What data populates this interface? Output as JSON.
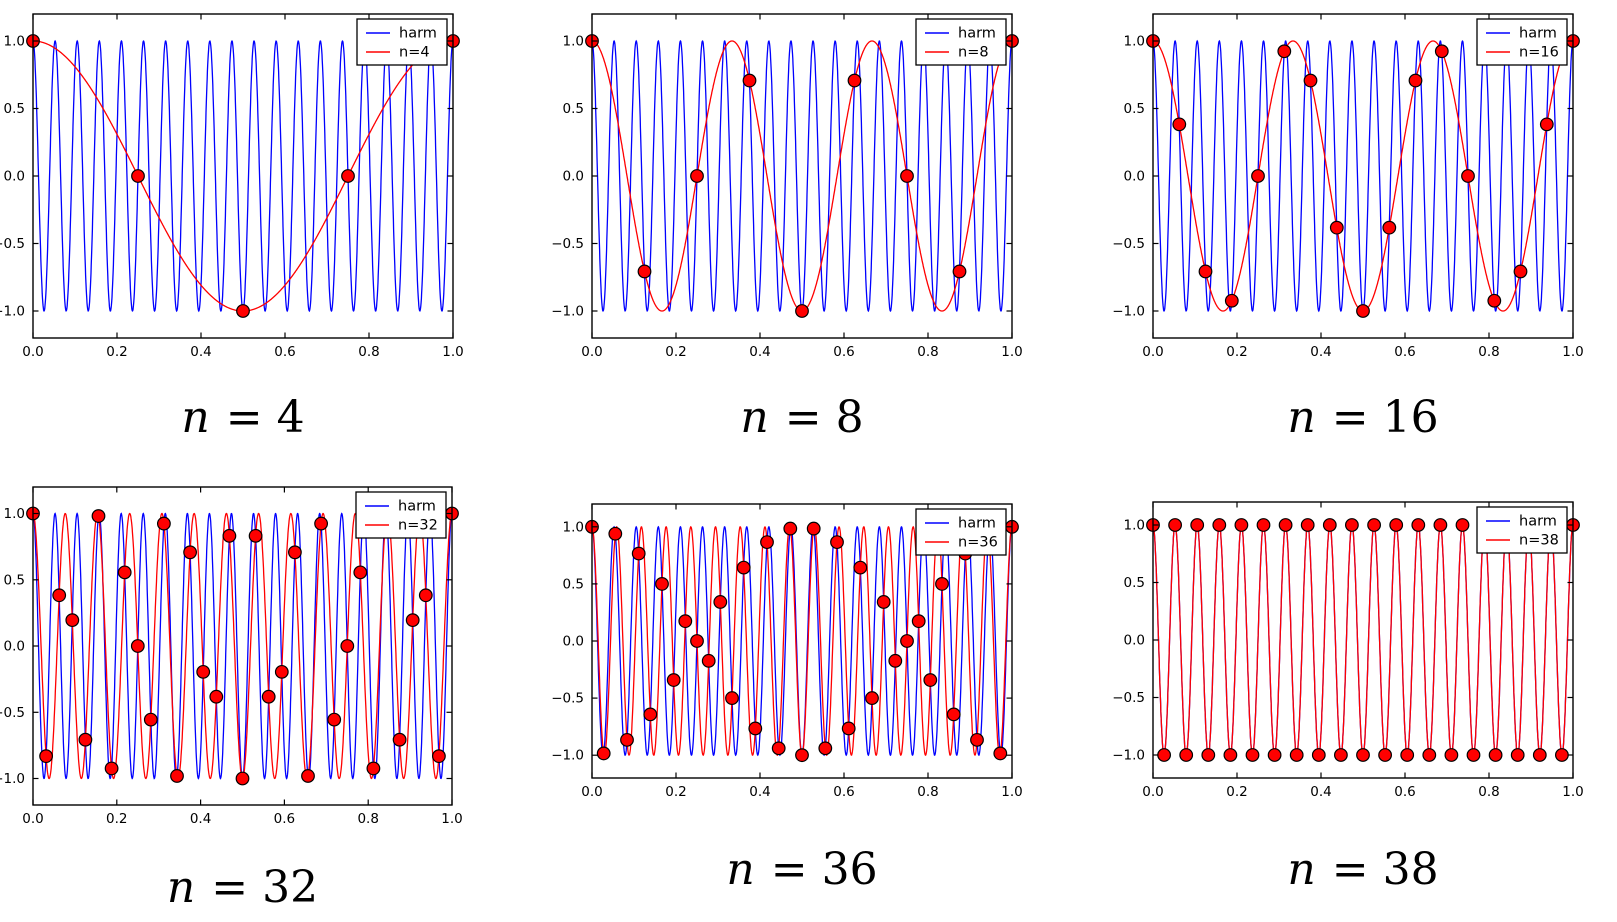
{
  "colors": {
    "harm": "#0000ff",
    "alias": "#ff0000",
    "marker_face": "#ff0000",
    "marker_edge": "#000000",
    "frame": "#000000",
    "background": "#ffffff"
  },
  "chart_data": [
    {
      "type": "line",
      "caption": "n = 4",
      "legend": [
        "harm",
        "n=4"
      ],
      "legend_position": "upper right",
      "n": 4,
      "harmonic_frequency": 19,
      "alias_frequency": 1,
      "xlim": [
        0,
        1
      ],
      "ylim": [
        -1.2,
        1.2
      ],
      "x_ticks": [
        0.0,
        0.2,
        0.4,
        0.6,
        0.8,
        1.0
      ],
      "y_ticks": [
        -1.0,
        -0.5,
        0.0,
        0.5,
        1.0
      ],
      "xlabel": "",
      "ylabel": "",
      "grid": false,
      "samples": {
        "x": [
          0,
          0.25,
          0.5,
          0.75,
          1
        ],
        "y": [
          1,
          0,
          -1,
          0,
          1
        ]
      }
    },
    {
      "type": "line",
      "caption": "n = 8",
      "legend": [
        "harm",
        "n=8"
      ],
      "legend_position": "upper right",
      "n": 8,
      "harmonic_frequency": 19,
      "alias_frequency": 3,
      "xlim": [
        0,
        1
      ],
      "ylim": [
        -1.2,
        1.2
      ],
      "x_ticks": [
        0.0,
        0.2,
        0.4,
        0.6,
        0.8,
        1.0
      ],
      "y_ticks": [
        -1.0,
        -0.5,
        0.0,
        0.5,
        1.0
      ],
      "xlabel": "",
      "ylabel": "",
      "grid": false,
      "samples": {
        "x": [
          0,
          0.125,
          0.25,
          0.375,
          0.5,
          0.625,
          0.75,
          0.875,
          1
        ],
        "y": [
          1,
          -0.7071,
          0,
          0.7071,
          -1,
          0.7071,
          0,
          -0.7071,
          1
        ]
      }
    },
    {
      "type": "line",
      "caption": "n = 16",
      "legend": [
        "harm",
        "n=16"
      ],
      "legend_position": "upper right",
      "n": 16,
      "harmonic_frequency": 19,
      "alias_frequency": 3,
      "xlim": [
        0,
        1
      ],
      "ylim": [
        -1.2,
        1.2
      ],
      "x_ticks": [
        0.0,
        0.2,
        0.4,
        0.6,
        0.8,
        1.0
      ],
      "y_ticks": [
        -1.0,
        -0.5,
        0.0,
        0.5,
        1.0
      ],
      "xlabel": "",
      "ylabel": "",
      "grid": false,
      "samples": {
        "x": [
          0,
          0.0625,
          0.125,
          0.1875,
          0.25,
          0.3125,
          0.375,
          0.4375,
          0.5,
          0.5625,
          0.625,
          0.6875,
          0.75,
          0.8125,
          0.875,
          0.9375,
          1
        ],
        "y": [
          1,
          0.3827,
          -0.7071,
          -0.9239,
          0,
          0.9239,
          0.7071,
          -0.3827,
          -1,
          -0.3827,
          0.7071,
          0.9239,
          0,
          -0.9239,
          -0.7071,
          0.3827,
          1
        ]
      }
    },
    {
      "type": "line",
      "caption": "n = 32",
      "legend": [
        "harm",
        "n=32"
      ],
      "legend_position": "upper right",
      "n": 32,
      "harmonic_frequency": 19,
      "alias_frequency": 13,
      "xlim": [
        0,
        1
      ],
      "ylim": [
        -1.2,
        1.2
      ],
      "x_ticks": [
        0.0,
        0.2,
        0.4,
        0.6,
        0.8,
        1.0
      ],
      "y_ticks": [
        -1.0,
        -0.5,
        0.0,
        0.5,
        1.0
      ],
      "xlabel": "",
      "ylabel": "",
      "grid": false,
      "samples": {
        "x": [
          0,
          0.03125,
          0.0625,
          0.09375,
          0.125,
          0.15625,
          0.1875,
          0.21875,
          0.25,
          0.28125,
          0.3125,
          0.34375,
          0.375,
          0.40625,
          0.4375,
          0.46875,
          0.5,
          0.53125,
          0.5625,
          0.59375,
          0.625,
          0.65625,
          0.6875,
          0.71875,
          0.75,
          0.78125,
          0.8125,
          0.84375,
          0.875,
          0.90625,
          0.9375,
          0.96875,
          1
        ],
        "y": [
          1,
          -0.8315,
          0.3827,
          0.1951,
          -0.7071,
          0.9808,
          -0.9239,
          0.5556,
          0,
          -0.5556,
          0.9239,
          -0.9808,
          0.7071,
          -0.1951,
          -0.3827,
          0.8315,
          -1,
          0.8315,
          -0.3827,
          -0.1951,
          0.7071,
          -0.9808,
          0.9239,
          -0.5556,
          0,
          0.5556,
          -0.9239,
          0.9808,
          -0.7071,
          0.1951,
          0.3827,
          -0.8315,
          1
        ]
      }
    },
    {
      "type": "line",
      "caption": "n = 36",
      "legend": [
        "harm",
        "n=36"
      ],
      "legend_position": "upper right",
      "n": 36,
      "harmonic_frequency": 19,
      "alias_frequency": 17,
      "xlim": [
        0,
        1
      ],
      "ylim": [
        -1.2,
        1.2
      ],
      "x_ticks": [
        0.0,
        0.2,
        0.4,
        0.6,
        0.8,
        1.0
      ],
      "y_ticks": [
        -1.0,
        -0.5,
        0.0,
        0.5,
        1.0
      ],
      "xlabel": "",
      "ylabel": "",
      "grid": false,
      "samples": {
        "x": [
          0,
          0.02778,
          0.05556,
          0.08333,
          0.11111,
          0.13889,
          0.16667,
          0.19444,
          0.22222,
          0.25,
          0.27778,
          0.30556,
          0.33333,
          0.36111,
          0.38889,
          0.41667,
          0.44444,
          0.47222,
          0.5,
          0.52778,
          0.55556,
          0.58333,
          0.61111,
          0.63889,
          0.66667,
          0.69444,
          0.72222,
          0.75,
          0.77778,
          0.80556,
          0.83333,
          0.86111,
          0.88889,
          0.91667,
          0.94444,
          0.97222,
          1
        ],
        "y": [
          1,
          -0.9848,
          0.9397,
          -0.866,
          0.766,
          -0.6428,
          0.5,
          -0.342,
          0.1736,
          0,
          -0.1736,
          0.342,
          -0.5,
          0.6428,
          -0.766,
          0.866,
          -0.9397,
          0.9848,
          -1,
          0.9848,
          -0.9397,
          0.866,
          -0.766,
          0.6428,
          -0.5,
          0.342,
          -0.1736,
          0,
          0.1736,
          -0.342,
          0.5,
          -0.6428,
          0.766,
          -0.866,
          0.9397,
          -0.9848,
          1
        ]
      }
    },
    {
      "type": "line",
      "caption": "n = 38",
      "legend": [
        "harm",
        "n=38"
      ],
      "legend_position": "upper right",
      "n": 38,
      "harmonic_frequency": 19,
      "alias_frequency": 19,
      "xlim": [
        0,
        1
      ],
      "ylim": [
        -1.2,
        1.2
      ],
      "x_ticks": [
        0.0,
        0.2,
        0.4,
        0.6,
        0.8,
        1.0
      ],
      "y_ticks": [
        -1.0,
        -0.5,
        0.0,
        0.5,
        1.0
      ],
      "xlabel": "",
      "ylabel": "",
      "grid": false,
      "samples": {
        "x": [
          0,
          0.02632,
          0.05263,
          0.07895,
          0.10526,
          0.13158,
          0.15789,
          0.18421,
          0.21053,
          0.23684,
          0.26316,
          0.28947,
          0.31579,
          0.34211,
          0.36842,
          0.39474,
          0.42105,
          0.44737,
          0.47368,
          0.5,
          0.52632,
          0.55263,
          0.57895,
          0.60526,
          0.63158,
          0.65789,
          0.68421,
          0.71053,
          0.73684,
          0.76316,
          0.78947,
          0.81579,
          0.84211,
          0.86842,
          0.89474,
          0.92105,
          0.94737,
          0.97368,
          1
        ],
        "y": [
          1,
          -1,
          1,
          -1,
          1,
          -1,
          1,
          -1,
          1,
          -1,
          1,
          -1,
          1,
          -1,
          1,
          -1,
          1,
          -1,
          1,
          -1,
          1,
          -1,
          1,
          -1,
          1,
          -1,
          1,
          -1,
          1,
          -1,
          1,
          -1,
          1,
          -1,
          1,
          -1,
          1,
          -1,
          1
        ]
      }
    }
  ]
}
